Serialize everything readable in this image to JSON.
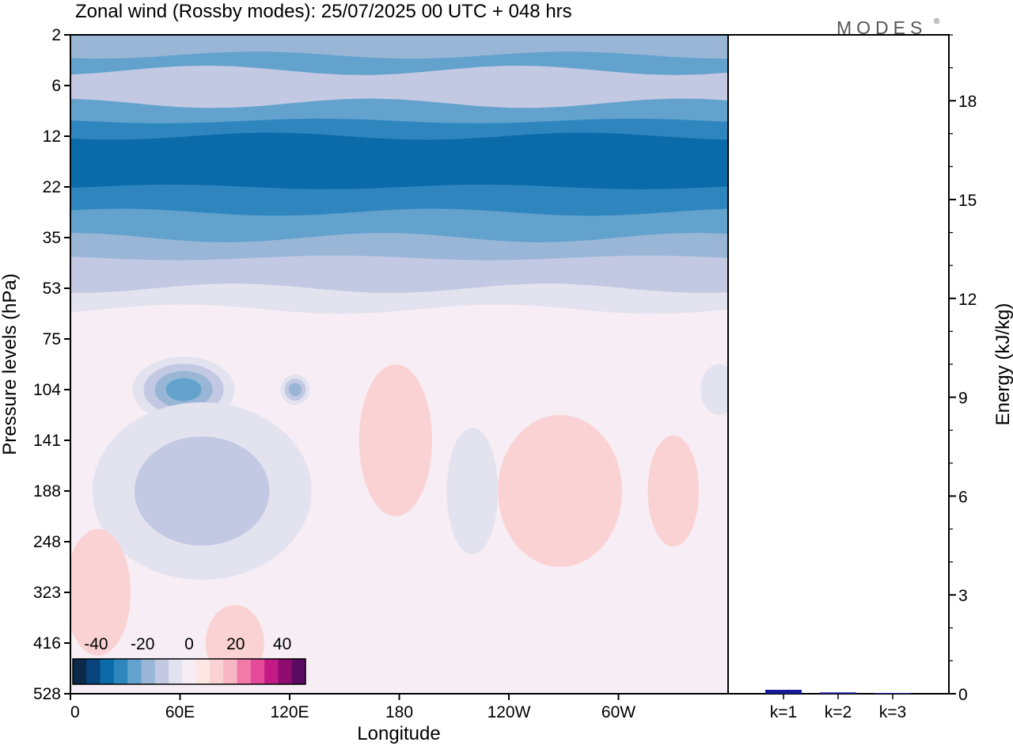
{
  "title": "Zonal wind (Rossby modes):  25/07/2025  00 UTC  + 048 hrs",
  "brand": "MODES",
  "brand_mark": "®",
  "colors": {
    "neg": [
      "#0b2a4a",
      "#08457e",
      "#0b6aa8",
      "#2f86bf",
      "#62a2cd",
      "#99b6d7",
      "#c3c9e3",
      "#e3e2ef"
    ],
    "zero": "#f6eef4",
    "pos": [
      "#fde7e4",
      "#fbd2d4",
      "#f7b6c4",
      "#f27aa9",
      "#e54a98",
      "#c41a86",
      "#8e0b70",
      "#5a0a62"
    ],
    "energy_bar": "#1a1a99"
  },
  "chart_data": [
    {
      "type": "heatmap",
      "name": "Zonal wind",
      "xlabel": "Longitude",
      "ylabel": "Pressure levels (hPa)",
      "x_ticks": [
        "0",
        "60E",
        "120E",
        "180",
        "120W",
        "60W"
      ],
      "x_tick_lon": [
        0,
        60,
        120,
        180,
        240,
        300
      ],
      "xlim": [
        0,
        360
      ],
      "y_ticks": [
        "2",
        "6",
        "12",
        "22",
        "35",
        "53",
        "75",
        "104",
        "141",
        "188",
        "248",
        "323",
        "416",
        "528"
      ],
      "colorbar": {
        "ticks": [
          "-40",
          "-20",
          "0",
          "20",
          "40"
        ],
        "tick_values": [
          -40,
          -20,
          0,
          20,
          40
        ],
        "range": [
          -50,
          50
        ],
        "step": 6.25
      },
      "bands": [
        {
          "level": "2",
          "wind": -14
        },
        {
          "level": "3",
          "wind": -20
        },
        {
          "level": "4",
          "wind": -12
        },
        {
          "level": "5",
          "wind": -9
        },
        {
          "level": "6",
          "wind": -12
        },
        {
          "level": "8",
          "wind": -22
        },
        {
          "level": "10",
          "wind": -28
        },
        {
          "level": "12",
          "wind": -34
        },
        {
          "level": "16",
          "wind": -32
        },
        {
          "level": "22",
          "wind": -28
        },
        {
          "level": "28",
          "wind": -22
        },
        {
          "level": "35",
          "wind": -17
        },
        {
          "level": "42",
          "wind": -12
        },
        {
          "level": "48",
          "wind": -7
        },
        {
          "level": "53",
          "wind": -3
        }
      ],
      "blobs": [
        {
          "lon": 62,
          "level": "104",
          "wind": -24,
          "width_deg": 28,
          "extent_levels": 1.3
        },
        {
          "lon": 72,
          "level": "188",
          "wind": -10,
          "width_deg": 60,
          "extent_levels": 3.5
        },
        {
          "lon": 123,
          "level": "104",
          "wind": -20,
          "width_deg": 8,
          "extent_levels": 0.6
        },
        {
          "lon": 220,
          "level": "188",
          "wind": -9,
          "width_deg": 14,
          "extent_levels": 2.5
        },
        {
          "lon": 178,
          "level": "141",
          "wind": 6,
          "width_deg": 20,
          "extent_levels": 3.0
        },
        {
          "lon": 268,
          "level": "188",
          "wind": 6,
          "width_deg": 34,
          "extent_levels": 3.0
        },
        {
          "lon": 330,
          "level": "188",
          "wind": 9,
          "width_deg": 14,
          "extent_levels": 2.2
        },
        {
          "lon": 15,
          "level": "323",
          "wind": 3,
          "width_deg": 18,
          "extent_levels": 2.5
        },
        {
          "lon": 90,
          "level": "416",
          "wind": 3,
          "width_deg": 16,
          "extent_levels": 1.5
        },
        {
          "lon": 355,
          "level": "104",
          "wind": -3,
          "width_deg": 10,
          "extent_levels": 1.0
        }
      ]
    },
    {
      "type": "bar",
      "name": "Energy",
      "ylabel": "Energy (kJ/kg)",
      "categories": [
        "k=1",
        "k=2",
        "k=3"
      ],
      "values": [
        0.12,
        0.04,
        0.01
      ],
      "ylim": [
        0,
        20
      ],
      "y_ticks": [
        0,
        3,
        6,
        9,
        12,
        15,
        18
      ],
      "y_minor_step": 1
    }
  ]
}
